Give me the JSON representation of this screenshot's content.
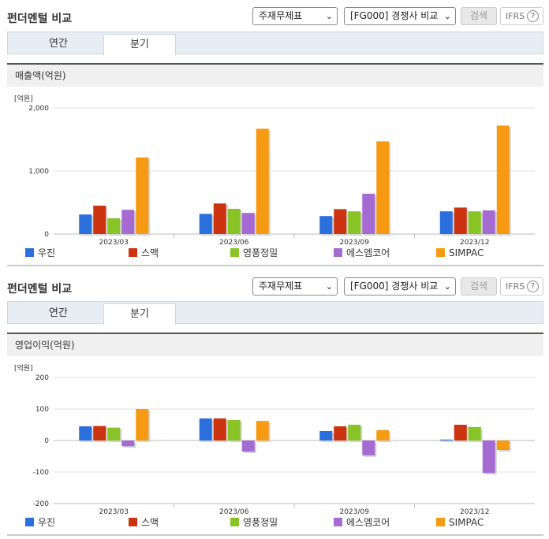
{
  "sections": [
    {
      "title": "펀더멘털 비교",
      "select1": "주재무제표",
      "select2": "[FG000] 경쟁사 비교",
      "search_label": "검색",
      "ifrs_label": "IFRS",
      "ifrs_help": "?",
      "tabs": [
        "연간",
        "분기"
      ],
      "active_tab": "분기",
      "chart_title": "매출액(억원)",
      "unit": "[억원]"
    },
    {
      "title": "펀더멘털 비교",
      "select1": "주재무제표",
      "select2": "[FG000] 경쟁사 비교",
      "search_label": "검색",
      "ifrs_label": "IFRS",
      "ifrs_help": "?",
      "tabs": [
        "연간",
        "분기"
      ],
      "active_tab": "분기",
      "chart_title": "영업이익(억원)",
      "unit": "[억원]"
    }
  ],
  "colors": {
    "우진": "#2a6fdb",
    "스맥": "#cc3311",
    "영풍정밀": "#88c425",
    "에스엠코어": "#a66bd3",
    "SIMPAC": "#f59a12"
  },
  "chart_data": [
    {
      "type": "bar",
      "title": "매출액(억원)",
      "ylabel": "[억원]",
      "categories": [
        "2023/03",
        "2023/06",
        "2023/09",
        "2023/12"
      ],
      "ylim": [
        0,
        2000
      ],
      "yticks": [
        0,
        1000,
        2000
      ],
      "ytick_labels": [
        "0",
        "1,000",
        "2,000"
      ],
      "grid": true,
      "legend": "bottom",
      "series": [
        {
          "name": "우진",
          "values": [
            310,
            320,
            285,
            360
          ]
        },
        {
          "name": "스맥",
          "values": [
            450,
            485,
            395,
            420
          ]
        },
        {
          "name": "영풍정밀",
          "values": [
            250,
            400,
            360,
            360
          ]
        },
        {
          "name": "에스엠코어",
          "values": [
            385,
            335,
            640,
            375
          ]
        },
        {
          "name": "SIMPAC",
          "values": [
            1215,
            1670,
            1470,
            1720
          ]
        }
      ]
    },
    {
      "type": "bar",
      "title": "영업이익(억원)",
      "ylabel": "[억원]",
      "categories": [
        "2023/03",
        "2023/06",
        "2023/09",
        "2023/12"
      ],
      "ylim": [
        -200,
        200
      ],
      "yticks": [
        -200,
        -100,
        0,
        100,
        200
      ],
      "ytick_labels": [
        "-200",
        "-100",
        "0",
        "100",
        "200"
      ],
      "grid": true,
      "legend": "bottom",
      "series": [
        {
          "name": "우진",
          "values": [
            45,
            70,
            30,
            3
          ]
        },
        {
          "name": "스맥",
          "values": [
            46,
            70,
            45,
            50
          ]
        },
        {
          "name": "영풍정밀",
          "values": [
            41,
            65,
            50,
            43
          ]
        },
        {
          "name": "에스엠코어",
          "values": [
            -18,
            -35,
            -47,
            -103
          ]
        },
        {
          "name": "SIMPAC",
          "values": [
            100,
            62,
            33,
            -30
          ]
        }
      ]
    }
  ]
}
